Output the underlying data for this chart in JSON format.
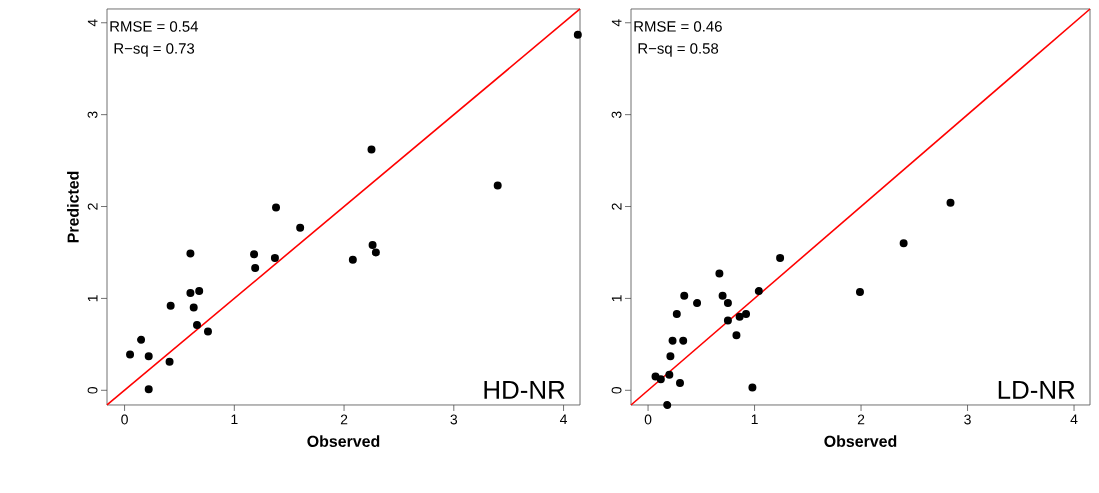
{
  "chart_data": [
    {
      "type": "scatter",
      "xlabel": "Observed",
      "ylabel": "Predicted",
      "xlim": [
        -0.16,
        4.15
      ],
      "ylim": [
        -0.16,
        4.15
      ],
      "xticks": [
        0,
        1,
        2,
        3,
        4
      ],
      "yticks": [
        0,
        1,
        2,
        3,
        4
      ],
      "annotations": [
        "RMSE =  0.54",
        " R−sq =  0.73",
        "HD-NR"
      ],
      "series": [
        {
          "marker": "circle",
          "color": "#000000",
          "x": [
            0.05,
            0.15,
            0.22,
            0.22,
            0.41,
            0.42,
            0.6,
            0.6,
            0.68,
            0.63,
            0.66,
            0.76,
            1.18,
            1.19,
            1.38,
            1.37,
            1.6,
            2.08,
            2.26,
            2.29,
            2.25,
            3.4,
            4.13
          ],
          "values": [
            0.39,
            0.55,
            0.37,
            0.01,
            0.31,
            0.92,
            1.49,
            1.06,
            1.08,
            0.9,
            0.71,
            0.64,
            1.48,
            1.33,
            1.99,
            1.44,
            1.77,
            1.42,
            1.58,
            1.5,
            2.62,
            2.23,
            3.87
          ]
        },
        {
          "type": "line",
          "marker": "none",
          "color": "#ff0000",
          "x": [
            -0.16,
            4.15
          ],
          "values": [
            -0.16,
            4.15
          ]
        }
      ]
    },
    {
      "type": "scatter",
      "xlabel": "Observed",
      "xlim": [
        -0.16,
        4.15
      ],
      "ylim": [
        -0.16,
        4.15
      ],
      "xticks": [
        0,
        1,
        2,
        3,
        4
      ],
      "yticks": [
        0,
        1,
        2,
        3,
        4
      ],
      "annotations": [
        "RMSE =  0.46",
        " R−sq =  0.58",
        "LD-NR"
      ],
      "series": [
        {
          "marker": "circle",
          "color": "#000000",
          "x": [
            0.07,
            0.12,
            0.2,
            0.18,
            0.3,
            0.21,
            0.23,
            0.33,
            0.27,
            0.34,
            0.46,
            0.67,
            0.7,
            0.75,
            0.75,
            0.83,
            0.86,
            0.92,
            0.98,
            1.04,
            1.24,
            1.99,
            2.4,
            2.84
          ],
          "values": [
            0.15,
            0.12,
            0.17,
            -0.16,
            0.08,
            0.37,
            0.54,
            0.54,
            0.83,
            1.03,
            0.95,
            1.27,
            1.03,
            0.95,
            0.76,
            0.6,
            0.8,
            0.83,
            0.03,
            1.08,
            1.44,
            1.07,
            1.6,
            2.04
          ]
        },
        {
          "type": "line",
          "marker": "none",
          "color": "#ff0000",
          "x": [
            -0.16,
            4.15
          ],
          "values": [
            -0.16,
            4.15
          ]
        }
      ]
    }
  ]
}
